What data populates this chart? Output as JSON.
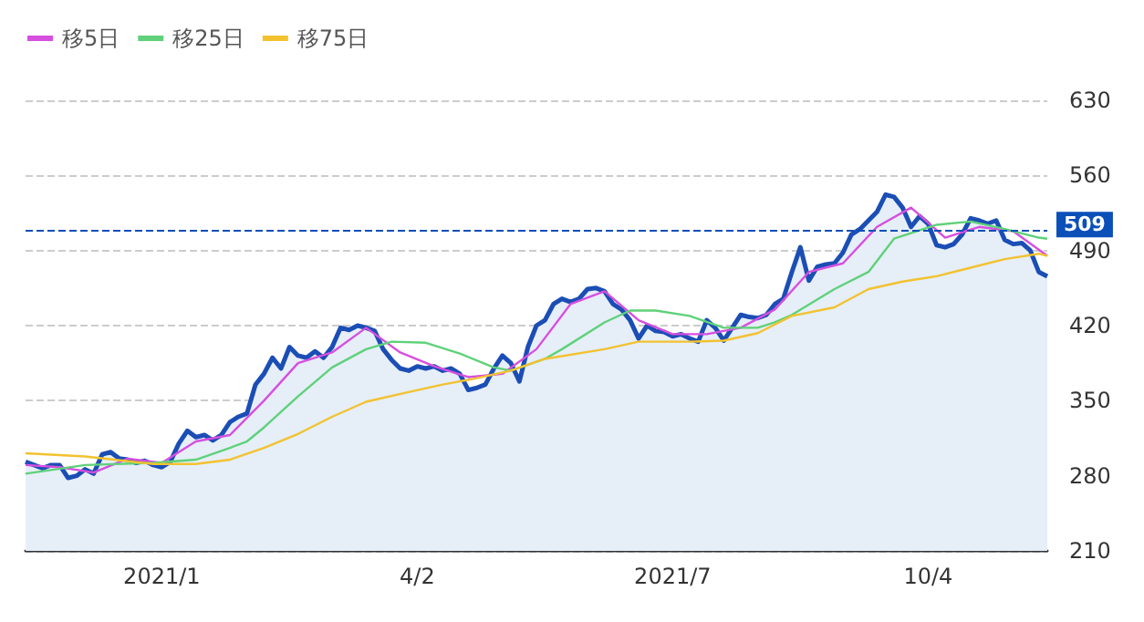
{
  "chart_data": {
    "type": "line",
    "categories": [
      null,
      null,
      null,
      null,
      null,
      null,
      null,
      null,
      null,
      null,
      null,
      null,
      null,
      null,
      null,
      null,
      "2021/1",
      null,
      null,
      null,
      null,
      null,
      null,
      null,
      null,
      null,
      null,
      null,
      null,
      null,
      null,
      null,
      null,
      null,
      null,
      null,
      null,
      null,
      null,
      null,
      null,
      null,
      null,
      null,
      null,
      null,
      "4/2",
      null,
      null,
      null,
      null,
      null,
      null,
      null,
      null,
      null,
      null,
      null,
      null,
      null,
      null,
      null,
      null,
      null,
      null,
      null,
      null,
      null,
      null,
      null,
      null,
      null,
      null,
      null,
      null,
      null,
      "2021/7",
      null,
      null,
      null,
      null,
      null,
      null,
      null,
      null,
      null,
      null,
      null,
      null,
      null,
      null,
      null,
      null,
      null,
      null,
      null,
      null,
      null,
      null,
      null,
      null,
      null,
      null,
      null,
      null,
      null,
      "10/4",
      null,
      null,
      null,
      null,
      null,
      null,
      null,
      null,
      null,
      null,
      null,
      null,
      null,
      null
    ],
    "series": [
      {
        "type": "area",
        "color": "#1b4eb5",
        "values": [
          293,
          290,
          287,
          290,
          290,
          278,
          280,
          286,
          282,
          300,
          302,
          296,
          295,
          292,
          294,
          290,
          288,
          293,
          310,
          322,
          316,
          318,
          313,
          318,
          330,
          335,
          338,
          365,
          375,
          390,
          380,
          400,
          392,
          390,
          396,
          390,
          400,
          418,
          416,
          420,
          418,
          415,
          398,
          388,
          380,
          378,
          382,
          380,
          382,
          378,
          380,
          375,
          360,
          362,
          365,
          380,
          392,
          385,
          368,
          400,
          420,
          425,
          440,
          445,
          442,
          445,
          454,
          455,
          452,
          440,
          435,
          425,
          408,
          420,
          415,
          414,
          410,
          412,
          408,
          405,
          425,
          418,
          406,
          418,
          430,
          428,
          427,
          430,
          440,
          445,
          470,
          493,
          462,
          475,
          477,
          478,
          488,
          505,
          510,
          518,
          526,
          542,
          540,
          530,
          512,
          522,
          515,
          495,
          493,
          496,
          505,
          520,
          518,
          515,
          518,
          500,
          496,
          497,
          490,
          470,
          466
        ]
      },
      {
        "name": "移5日",
        "color": "#d64fe0",
        "values": [
          290,
          null,
          null,
          null,
          288,
          null,
          null,
          null,
          283,
          null,
          null,
          null,
          296,
          null,
          null,
          null,
          292,
          null,
          null,
          null,
          312,
          null,
          null,
          null,
          318,
          null,
          null,
          null,
          350,
          null,
          null,
          null,
          385,
          null,
          null,
          null,
          395,
          null,
          null,
          null,
          418,
          null,
          null,
          null,
          395,
          null,
          null,
          null,
          382,
          null,
          null,
          null,
          372,
          null,
          null,
          null,
          375,
          null,
          null,
          null,
          398,
          null,
          null,
          null,
          440,
          null,
          null,
          null,
          452,
          null,
          null,
          null,
          425,
          null,
          null,
          null,
          412,
          null,
          null,
          null,
          412,
          null,
          null,
          null,
          418,
          null,
          null,
          null,
          435,
          null,
          null,
          null,
          470,
          null,
          null,
          null,
          478,
          null,
          null,
          null,
          512,
          null,
          null,
          null,
          530,
          null,
          null,
          null,
          502,
          null,
          null,
          null,
          512,
          null,
          null,
          null,
          508,
          null,
          null,
          null,
          485
        ]
      },
      {
        "name": "移25日",
        "color": "#5fd17a",
        "values": [
          282,
          null,
          null,
          null,
          null,
          null,
          null,
          290,
          null,
          null,
          null,
          null,
          null,
          null,
          null,
          292,
          null,
          null,
          null,
          null,
          295,
          null,
          null,
          null,
          306,
          null,
          312,
          null,
          325,
          null,
          null,
          null,
          354,
          null,
          null,
          null,
          381,
          null,
          null,
          null,
          398,
          null,
          null,
          405,
          null,
          null,
          null,
          404,
          null,
          null,
          null,
          394,
          null,
          null,
          null,
          381,
          null,
          378,
          null,
          null,
          null,
          389,
          null,
          398,
          null,
          null,
          null,
          null,
          423,
          null,
          null,
          434,
          null,
          null,
          434,
          null,
          null,
          null,
          429,
          null,
          null,
          null,
          418,
          null,
          null,
          null,
          418,
          null,
          423,
          null,
          430,
          null,
          null,
          null,
          null,
          454,
          null,
          null,
          null,
          470,
          null,
          null,
          501,
          null,
          null,
          null,
          null,
          514,
          null,
          null,
          null,
          517,
          null,
          null,
          null,
          510,
          null,
          null,
          null,
          502,
          501
        ]
      },
      {
        "name": "移75日",
        "color": "#f2c230",
        "values": [
          301,
          null,
          null,
          null,
          null,
          null,
          null,
          298,
          null,
          null,
          null,
          null,
          null,
          null,
          null,
          291,
          null,
          null,
          null,
          null,
          291,
          null,
          null,
          null,
          295,
          null,
          null,
          null,
          306,
          null,
          null,
          null,
          319,
          null,
          null,
          null,
          335,
          null,
          null,
          null,
          349,
          null,
          null,
          null,
          null,
          358,
          null,
          null,
          null,
          365,
          null,
          null,
          null,
          371,
          null,
          null,
          null,
          378,
          null,
          null,
          null,
          389,
          null,
          null,
          null,
          null,
          null,
          null,
          398,
          null,
          null,
          null,
          405,
          null,
          null,
          null,
          null,
          null,
          405,
          null,
          null,
          null,
          406,
          null,
          null,
          null,
          413,
          null,
          null,
          null,
          429,
          null,
          null,
          null,
          null,
          437,
          null,
          null,
          null,
          454,
          null,
          null,
          null,
          461,
          null,
          null,
          null,
          466,
          null,
          null,
          null,
          474,
          null,
          null,
          null,
          482,
          null,
          null,
          null,
          487,
          485
        ]
      }
    ],
    "ylim": [
      210,
      630
    ],
    "yticks": [
      210,
      280,
      350,
      420,
      490,
      560,
      630
    ],
    "grid": "y",
    "legend": "top left",
    "marker": "none",
    "ref_lines": [
      {
        "axis": "y",
        "value": 509,
        "label": "509",
        "color": "#0b4fb8",
        "line_style": "dashed"
      }
    ]
  }
}
